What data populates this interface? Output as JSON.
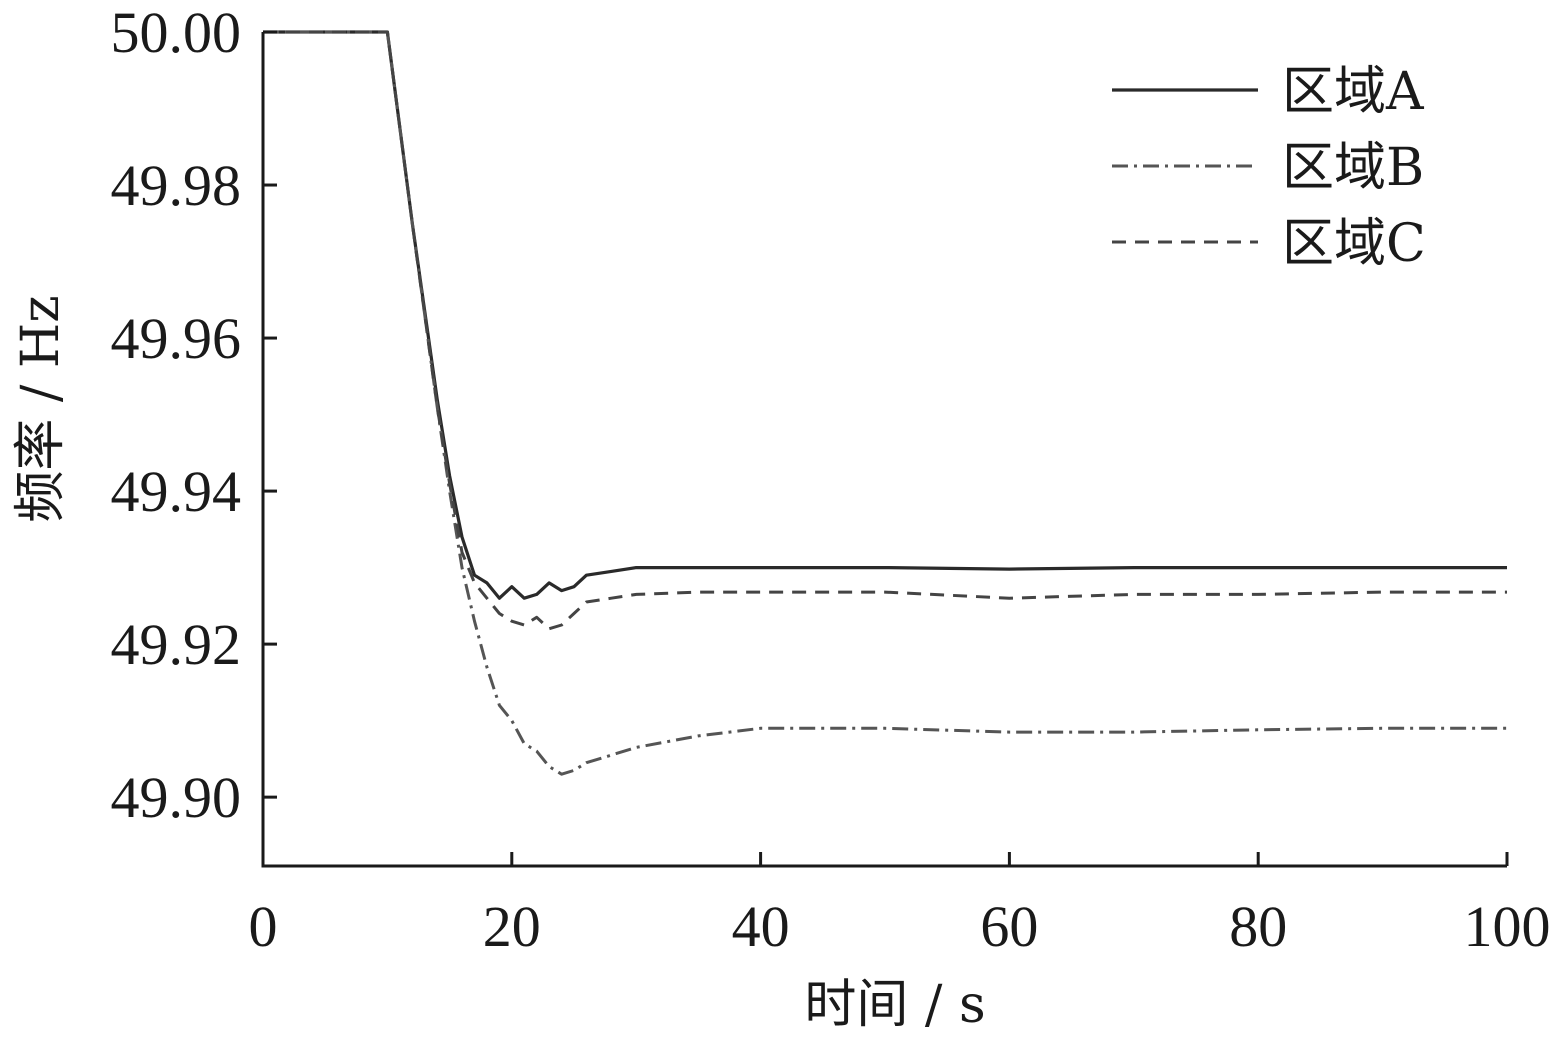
{
  "chart_data": {
    "type": "line",
    "title": "",
    "xlabel": "时间 / s",
    "ylabel": "频率 / Hz",
    "xlim": [
      0,
      100
    ],
    "ylim": [
      49.891,
      50.0
    ],
    "x_ticks": [
      0,
      20,
      40,
      60,
      80,
      100
    ],
    "x_tick_labels": [
      "0",
      "20",
      "40",
      "60",
      "80",
      "100"
    ],
    "y_ticks": [
      49.9,
      49.92,
      49.94,
      49.96,
      49.98,
      50.0
    ],
    "y_tick_labels": [
      "49.90",
      "49.92",
      "49.94",
      "49.96",
      "49.98",
      "50.00"
    ],
    "grid": false,
    "legend_position": "top-right",
    "series": [
      {
        "name": "区域A",
        "style": "solid",
        "color": "#2a2a2a",
        "x": [
          0,
          10,
          12,
          14,
          15,
          16,
          17,
          18,
          19,
          20,
          21,
          22,
          23,
          24,
          25,
          26,
          28,
          30,
          35,
          40,
          50,
          60,
          70,
          80,
          90,
          100
        ],
        "y": [
          50.0,
          50.0,
          49.975,
          49.952,
          49.942,
          49.934,
          49.929,
          49.928,
          49.926,
          49.9275,
          49.926,
          49.9265,
          49.928,
          49.927,
          49.9275,
          49.929,
          49.9295,
          49.93,
          49.93,
          49.93,
          49.93,
          49.9298,
          49.93,
          49.93,
          49.93,
          49.93
        ]
      },
      {
        "name": "区域B",
        "style": "dashdot",
        "color": "#555555",
        "x": [
          0,
          10,
          12,
          14,
          15,
          16,
          17,
          18,
          19,
          20,
          21,
          22,
          23,
          24,
          25,
          26,
          28,
          30,
          35,
          40,
          50,
          60,
          70,
          80,
          90,
          100
        ],
        "y": [
          50.0,
          50.0,
          49.975,
          49.951,
          49.94,
          49.93,
          49.923,
          49.917,
          49.912,
          49.91,
          49.907,
          49.906,
          49.904,
          49.903,
          49.9035,
          49.9045,
          49.9055,
          49.9065,
          49.908,
          49.909,
          49.909,
          49.9085,
          49.9085,
          49.9088,
          49.909,
          49.909
        ]
      },
      {
        "name": "区域C",
        "style": "dashed",
        "color": "#444444",
        "x": [
          0,
          10,
          12,
          14,
          15,
          16,
          17,
          18,
          19,
          20,
          21,
          22,
          23,
          24,
          25,
          26,
          28,
          30,
          35,
          40,
          50,
          60,
          70,
          80,
          90,
          100
        ],
        "y": [
          50.0,
          50.0,
          49.975,
          49.951,
          49.941,
          49.932,
          49.928,
          49.926,
          49.924,
          49.923,
          49.9225,
          49.9235,
          49.922,
          49.9225,
          49.924,
          49.9255,
          49.926,
          49.9265,
          49.9268,
          49.9268,
          49.9268,
          49.926,
          49.9265,
          49.9265,
          49.9268,
          49.9268
        ]
      }
    ]
  }
}
